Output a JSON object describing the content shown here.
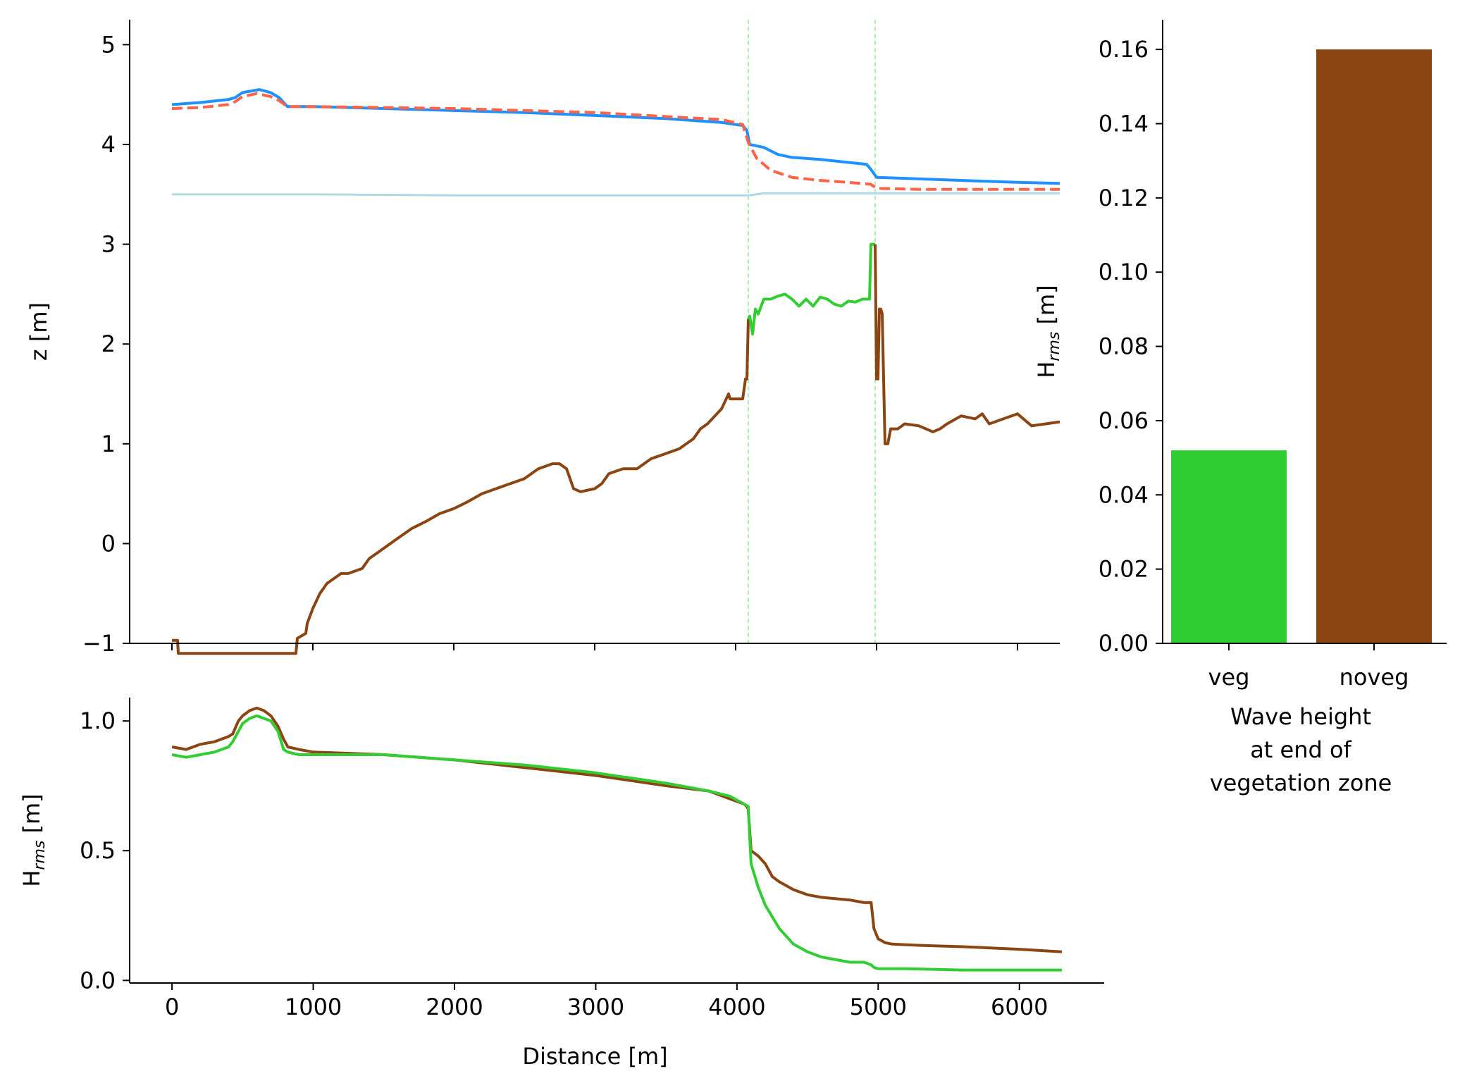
{
  "colors": {
    "veg": "#32CD32",
    "noveg": "#8B4513",
    "water_level": "#ADD8E6",
    "wave_setup_veg": "#1E90FF",
    "wave_setup_noveg": "#FF6347",
    "veg_zone_marker": "#90EE90"
  },
  "chart_data": [
    {
      "type": "line",
      "ylabel": "z [m]",
      "xlim": [
        -300,
        6300
      ],
      "ylim": [
        -1,
        5.25
      ],
      "x_ticks": [
        0,
        1000,
        2000,
        3000,
        4000,
        5000,
        6000
      ],
      "y_ticks": [
        -1,
        0,
        1,
        2,
        3,
        4,
        5
      ],
      "y_tick_labels": [
        "−1",
        "0",
        "1",
        "2",
        "3",
        "4",
        "5"
      ],
      "vegetation_zone": [
        4090,
        4990
      ],
      "series": [
        {
          "color_key": "wave_setup_veg",
          "style": "solid",
          "x": [
            0,
            200,
            400,
            450,
            500,
            620,
            700,
            760,
            820,
            1000,
            1500,
            2000,
            2500,
            3000,
            3500,
            3900,
            4050,
            4080,
            4100,
            4200,
            4300,
            4400,
            4600,
            4800,
            4930,
            4960,
            5000,
            5200,
            5600,
            6000,
            6300
          ],
          "y": [
            4.4,
            4.42,
            4.45,
            4.47,
            4.52,
            4.55,
            4.52,
            4.47,
            4.38,
            4.38,
            4.36,
            4.34,
            4.32,
            4.29,
            4.26,
            4.22,
            4.19,
            4.14,
            4.0,
            3.97,
            3.9,
            3.87,
            3.85,
            3.82,
            3.8,
            3.75,
            3.67,
            3.66,
            3.64,
            3.62,
            3.61
          ]
        },
        {
          "color_key": "wave_setup_noveg",
          "style": "dashed",
          "x": [
            0,
            200,
            400,
            450,
            500,
            600,
            700,
            760,
            820,
            1000,
            1500,
            2000,
            2500,
            3000,
            3500,
            3900,
            4050,
            4090,
            4150,
            4250,
            4400,
            4600,
            4800,
            4960,
            5000,
            5300,
            5700,
            6300
          ],
          "y": [
            4.36,
            4.37,
            4.4,
            4.43,
            4.48,
            4.51,
            4.48,
            4.44,
            4.38,
            4.38,
            4.37,
            4.36,
            4.34,
            4.32,
            4.28,
            4.25,
            4.2,
            4.02,
            3.86,
            3.74,
            3.67,
            3.64,
            3.62,
            3.6,
            3.56,
            3.55,
            3.55,
            3.55
          ]
        },
        {
          "color_key": "water_level",
          "style": "solid",
          "x": [
            0,
            1000,
            2000,
            3000,
            4000,
            4090,
            4200,
            4500,
            5000,
            6300
          ],
          "y": [
            3.5,
            3.5,
            3.49,
            3.49,
            3.49,
            3.49,
            3.51,
            3.51,
            3.51,
            3.51
          ]
        },
        {
          "color_key": "noveg",
          "style": "solid",
          "x": [
            0,
            20,
            40,
            45,
            880,
            890,
            950,
            960,
            1000,
            1050,
            1100,
            1200,
            1250,
            1350,
            1400,
            1450,
            1500,
            1600,
            1700,
            1800,
            1900,
            2000,
            2100,
            2200,
            2300,
            2400,
            2500,
            2600,
            2700,
            2750,
            2800,
            2850,
            2900,
            3000,
            3050,
            3100,
            3200,
            3300,
            3400,
            3500,
            3600,
            3700,
            3750,
            3800,
            3900,
            3950,
            3960,
            4000,
            4050,
            4070,
            4080,
            4090
          ],
          "y": [
            -0.97,
            -0.97,
            -0.97,
            -1.1,
            -1.1,
            -0.95,
            -0.9,
            -0.8,
            -0.65,
            -0.5,
            -0.4,
            -0.3,
            -0.3,
            -0.25,
            -0.15,
            -0.1,
            -0.05,
            0.05,
            0.15,
            0.22,
            0.3,
            0.35,
            0.42,
            0.5,
            0.55,
            0.6,
            0.65,
            0.75,
            0.8,
            0.8,
            0.75,
            0.55,
            0.52,
            0.55,
            0.6,
            0.7,
            0.75,
            0.75,
            0.85,
            0.9,
            0.95,
            1.05,
            1.15,
            1.2,
            1.35,
            1.5,
            1.45,
            1.45,
            1.45,
            1.65,
            1.65,
            2.25
          ]
        },
        {
          "color_key": "veg",
          "style": "solid",
          "x": [
            4090,
            4100,
            4120,
            4140,
            4160,
            4200,
            4250,
            4300,
            4350,
            4400,
            4450,
            4500,
            4550,
            4600,
            4650,
            4700,
            4750,
            4800,
            4850,
            4900,
            4950,
            4960,
            4990
          ],
          "y": [
            2.25,
            2.28,
            2.1,
            2.35,
            2.3,
            2.45,
            2.45,
            2.48,
            2.5,
            2.45,
            2.38,
            2.45,
            2.38,
            2.47,
            2.45,
            2.4,
            2.38,
            2.43,
            2.42,
            2.45,
            2.45,
            3.0,
            3.0
          ]
        },
        {
          "color_key": "noveg",
          "style": "solid",
          "x": [
            4990,
            5000,
            5010,
            5020,
            5030,
            5040,
            5060,
            5070,
            5080,
            5100,
            5150,
            5200,
            5300,
            5400,
            5450,
            5500,
            5600,
            5700,
            5750,
            5800,
            5900,
            6000,
            6100,
            6200,
            6300
          ],
          "y": [
            3.0,
            1.65,
            1.65,
            2.35,
            2.35,
            2.3,
            1.0,
            1.0,
            1.0,
            1.15,
            1.15,
            1.2,
            1.18,
            1.12,
            1.15,
            1.2,
            1.28,
            1.25,
            1.3,
            1.2,
            1.25,
            1.3,
            1.18,
            1.2,
            1.22
          ]
        }
      ]
    },
    {
      "type": "line",
      "xlabel": "Distance [m]",
      "ylabel_main": "H",
      "ylabel_sub": "rms",
      "ylabel_unit": " [m]",
      "xlim": [
        -300,
        6600
      ],
      "ylim": [
        -0.01,
        1.09
      ],
      "x_ticks": [
        0,
        1000,
        2000,
        3000,
        4000,
        5000,
        6000
      ],
      "y_ticks": [
        0,
        0.5,
        1
      ],
      "y_tick_labels": [
        "0.0",
        "0.5",
        "1.0"
      ],
      "series": [
        {
          "name": "noveg",
          "color_key": "noveg",
          "x": [
            0,
            100,
            200,
            300,
            400,
            430,
            470,
            500,
            550,
            600,
            650,
            700,
            750,
            790,
            820,
            900,
            1000,
            1500,
            2000,
            2500,
            3000,
            3500,
            3800,
            3950,
            4050,
            4070,
            4080,
            4100,
            4150,
            4200,
            4250,
            4300,
            4400,
            4500,
            4600,
            4800,
            4900,
            4940,
            4950,
            4970,
            5000,
            5050,
            5100,
            5300,
            5600,
            6000,
            6300
          ],
          "y": [
            0.9,
            0.89,
            0.91,
            0.92,
            0.94,
            0.95,
            1.0,
            1.02,
            1.04,
            1.05,
            1.04,
            1.02,
            0.98,
            0.93,
            0.9,
            0.89,
            0.88,
            0.87,
            0.85,
            0.82,
            0.79,
            0.75,
            0.73,
            0.7,
            0.68,
            0.67,
            0.66,
            0.5,
            0.48,
            0.45,
            0.4,
            0.38,
            0.35,
            0.33,
            0.32,
            0.31,
            0.3,
            0.3,
            0.3,
            0.2,
            0.16,
            0.145,
            0.14,
            0.135,
            0.13,
            0.12,
            0.11
          ]
        },
        {
          "name": "veg",
          "color_key": "veg",
          "x": [
            0,
            100,
            200,
            300,
            400,
            430,
            470,
            500,
            550,
            600,
            650,
            700,
            750,
            790,
            820,
            900,
            1000,
            1500,
            2000,
            2500,
            3000,
            3500,
            3800,
            3950,
            4050,
            4080,
            4100,
            4150,
            4200,
            4300,
            4400,
            4500,
            4600,
            4700,
            4800,
            4900,
            4950,
            4970,
            5000,
            5200,
            5600,
            6000,
            6300
          ],
          "y": [
            0.87,
            0.86,
            0.87,
            0.88,
            0.9,
            0.92,
            0.96,
            0.99,
            1.01,
            1.02,
            1.01,
            1.0,
            0.96,
            0.89,
            0.88,
            0.87,
            0.87,
            0.87,
            0.85,
            0.83,
            0.8,
            0.76,
            0.73,
            0.71,
            0.68,
            0.67,
            0.45,
            0.36,
            0.29,
            0.2,
            0.14,
            0.11,
            0.09,
            0.08,
            0.07,
            0.07,
            0.06,
            0.05,
            0.045,
            0.045,
            0.04,
            0.04,
            0.04
          ]
        }
      ]
    },
    {
      "type": "bar",
      "xlabel": "Wave height\nat end of\nvegetation zone",
      "ylabel_main": "H",
      "ylabel_sub": "rms",
      "ylabel_unit": " [m]",
      "categories": [
        "veg",
        "noveg"
      ],
      "values": [
        0.052,
        0.16
      ],
      "color_keys": [
        "veg",
        "noveg"
      ],
      "ylim": [
        0,
        0.168
      ],
      "y_ticks": [
        0,
        0.02,
        0.04,
        0.06,
        0.08,
        0.1,
        0.12,
        0.14,
        0.16
      ],
      "y_tick_labels": [
        "0.00",
        "0.02",
        "0.04",
        "0.06",
        "0.08",
        "0.10",
        "0.12",
        "0.14",
        "0.16"
      ]
    }
  ]
}
